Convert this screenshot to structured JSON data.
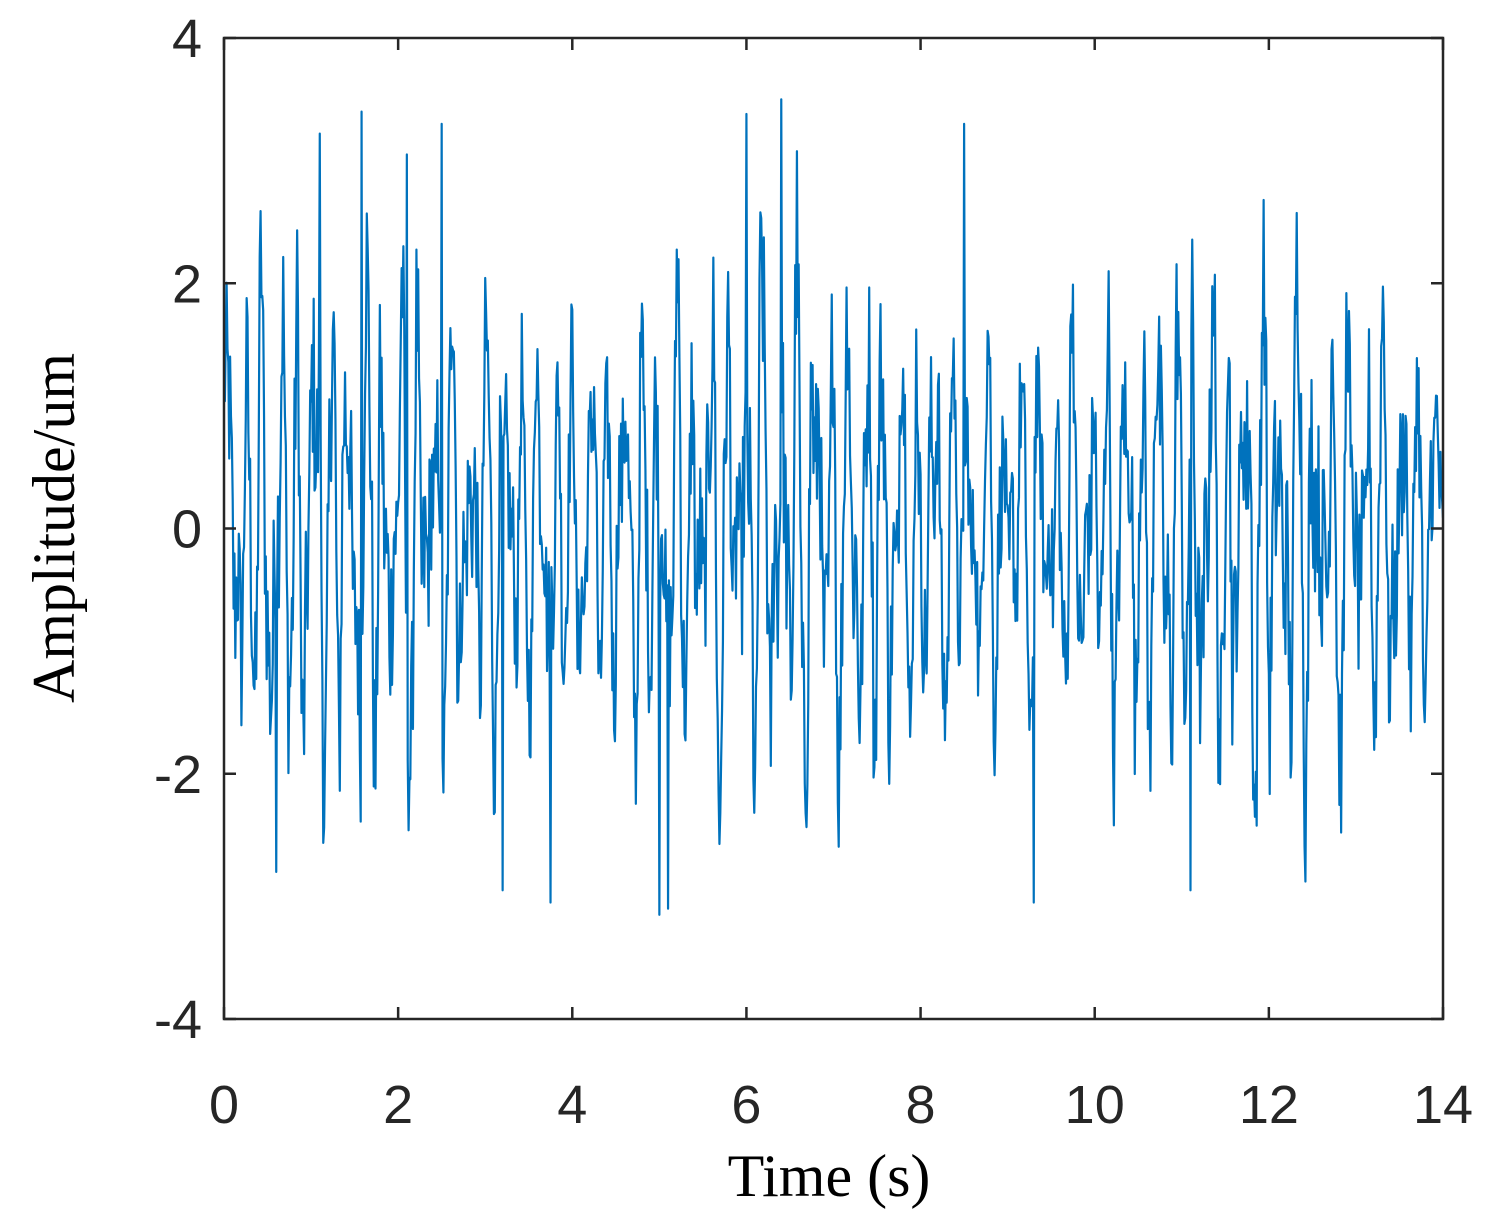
{
  "chart_data": {
    "type": "line",
    "title": "",
    "xlabel": "Time (s)",
    "ylabel": "Amplitude/um",
    "xlim": [
      0,
      14
    ],
    "ylim": [
      -4,
      4
    ],
    "xticks": [
      0,
      2,
      4,
      6,
      8,
      10,
      12,
      14
    ],
    "yticks": [
      -4,
      -2,
      0,
      2,
      4
    ],
    "xtick_labels": [
      "0",
      "2",
      "4",
      "6",
      "8",
      "10",
      "12",
      "14"
    ],
    "ytick_labels": [
      "-4",
      "-2",
      "0",
      "2",
      "4"
    ],
    "grid": false,
    "legend": "none",
    "series": [
      {
        "color": "#0072BD",
        "sample_interval_s": 0.01,
        "samples": 1401,
        "envelope_max": 3.5,
        "envelope_min": -3.15,
        "peaks": [
          {
            "x": 1.1,
            "y": 3.22
          },
          {
            "x": 1.58,
            "y": 3.4
          },
          {
            "x": 2.1,
            "y": 3.05
          },
          {
            "x": 2.5,
            "y": 3.3
          },
          {
            "x": 6.0,
            "y": 3.38
          },
          {
            "x": 6.4,
            "y": 3.5
          },
          {
            "x": 8.5,
            "y": 3.3
          }
        ],
        "troughs": [
          {
            "x": 0.6,
            "y": -2.8
          },
          {
            "x": 3.2,
            "y": -2.95
          },
          {
            "x": 3.75,
            "y": -3.05
          },
          {
            "x": 5.0,
            "y": -3.15
          },
          {
            "x": 5.1,
            "y": -3.1
          },
          {
            "x": 9.3,
            "y": -3.05
          },
          {
            "x": 11.1,
            "y": -2.95
          }
        ]
      }
    ]
  }
}
